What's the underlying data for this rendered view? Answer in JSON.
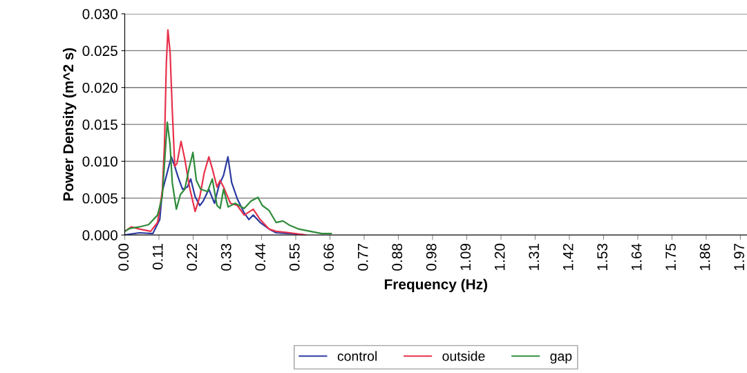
{
  "chart_data": {
    "type": "line",
    "xlabel": "Frequency (Hz)",
    "ylabel": "Power Density (m^2 s)",
    "xlim": [
      0,
      1.99
    ],
    "ylim": [
      0,
      0.03
    ],
    "xticks": [
      {
        "value": 0,
        "label": "0.00"
      },
      {
        "value": 0.109375,
        "label": "0.11"
      },
      {
        "value": 0.21875,
        "label": "0.22"
      },
      {
        "value": 0.328125,
        "label": "0.33"
      },
      {
        "value": 0.4375,
        "label": "0.44"
      },
      {
        "value": 0.546875,
        "label": "0.55"
      },
      {
        "value": 0.65625,
        "label": "0.66"
      },
      {
        "value": 0.765625,
        "label": "0.77"
      },
      {
        "value": 0.875,
        "label": "0.88"
      },
      {
        "value": 0.984375,
        "label": "0.98"
      },
      {
        "value": 1.09375,
        "label": "1.09"
      },
      {
        "value": 1.203125,
        "label": "1.20"
      },
      {
        "value": 1.3125,
        "label": "1.31"
      },
      {
        "value": 1.421875,
        "label": "1.42"
      },
      {
        "value": 1.53125,
        "label": "1.53"
      },
      {
        "value": 1.640625,
        "label": "1.64"
      },
      {
        "value": 1.75,
        "label": "1.75"
      },
      {
        "value": 1.859375,
        "label": "1.86"
      },
      {
        "value": 1.96875,
        "label": "1.97"
      }
    ],
    "yticks": [
      {
        "value": 0,
        "label": "0.000"
      },
      {
        "value": 0.005,
        "label": "0.005"
      },
      {
        "value": 0.01,
        "label": "0.010"
      },
      {
        "value": 0.015,
        "label": "0.015"
      },
      {
        "value": 0.02,
        "label": "0.020"
      },
      {
        "value": 0.025,
        "label": "0.025"
      },
      {
        "value": 0.03,
        "label": "0.030"
      }
    ],
    "grid": "y",
    "legend": "bottom",
    "marker": "none",
    "line_style": "solid",
    "series": [
      {
        "name": "control",
        "color": "#2b3aa0",
        "x": [
          0,
          0.047,
          0.09,
          0.112,
          0.12,
          0.149,
          0.16,
          0.171,
          0.185,
          0.2,
          0.211,
          0.225,
          0.24,
          0.251,
          0.269,
          0.287,
          0.302,
          0.316,
          0.33,
          0.342,
          0.36,
          0.382,
          0.397,
          0.411,
          0.433,
          0.462,
          0.484,
          0.528,
          0.579
        ],
        "values": [
          0,
          0.0003,
          0.0002,
          0.0021,
          0.0059,
          0.0106,
          0.0093,
          0.0078,
          0.0062,
          0.0065,
          0.0076,
          0.0052,
          0.004,
          0.0046,
          0.0062,
          0.0043,
          0.0068,
          0.0081,
          0.0106,
          0.0071,
          0.0049,
          0.003,
          0.0021,
          0.0027,
          0.0017,
          0.0008,
          0.0003,
          0.0002,
          0
        ]
      },
      {
        "name": "outside",
        "color": "#e8304a",
        "x": [
          0,
          0.021,
          0.047,
          0.083,
          0.105,
          0.12,
          0.127,
          0.133,
          0.138,
          0.145,
          0.152,
          0.16,
          0.167,
          0.18,
          0.192,
          0.207,
          0.225,
          0.24,
          0.254,
          0.269,
          0.28,
          0.295,
          0.305,
          0.316,
          0.338,
          0.36,
          0.382,
          0.411,
          0.433,
          0.462,
          0.484,
          0.528,
          0.579
        ],
        "values": [
          0.0005,
          0.0011,
          0.0008,
          0.0005,
          0.0017,
          0.0059,
          0.0122,
          0.0233,
          0.0278,
          0.0248,
          0.0169,
          0.0093,
          0.0097,
          0.0127,
          0.0103,
          0.0065,
          0.0032,
          0.0052,
          0.0084,
          0.0106,
          0.009,
          0.0065,
          0.0074,
          0.0065,
          0.0043,
          0.004,
          0.0027,
          0.0035,
          0.0021,
          0.0008,
          0.0005,
          0.0003,
          0
        ]
      },
      {
        "name": "gap",
        "color": "#2e8b3a",
        "x": [
          0,
          0.017,
          0.047,
          0.076,
          0.105,
          0.12,
          0.131,
          0.136,
          0.145,
          0.152,
          0.165,
          0.178,
          0.192,
          0.207,
          0.218,
          0.229,
          0.243,
          0.265,
          0.28,
          0.295,
          0.305,
          0.316,
          0.331,
          0.353,
          0.382,
          0.404,
          0.426,
          0.44,
          0.462,
          0.484,
          0.506,
          0.528,
          0.557,
          0.593,
          0.63,
          0.66
        ],
        "values": [
          0.0005,
          0.0009,
          0.0011,
          0.0014,
          0.0027,
          0.0052,
          0.0122,
          0.0153,
          0.0122,
          0.0071,
          0.0035,
          0.0055,
          0.0062,
          0.0093,
          0.0112,
          0.0074,
          0.0062,
          0.0059,
          0.0076,
          0.004,
          0.0036,
          0.0062,
          0.0038,
          0.0043,
          0.0036,
          0.0046,
          0.0051,
          0.004,
          0.0033,
          0.0017,
          0.0019,
          0.0013,
          0.0008,
          0.0005,
          0.0002,
          0.0002
        ]
      }
    ]
  }
}
